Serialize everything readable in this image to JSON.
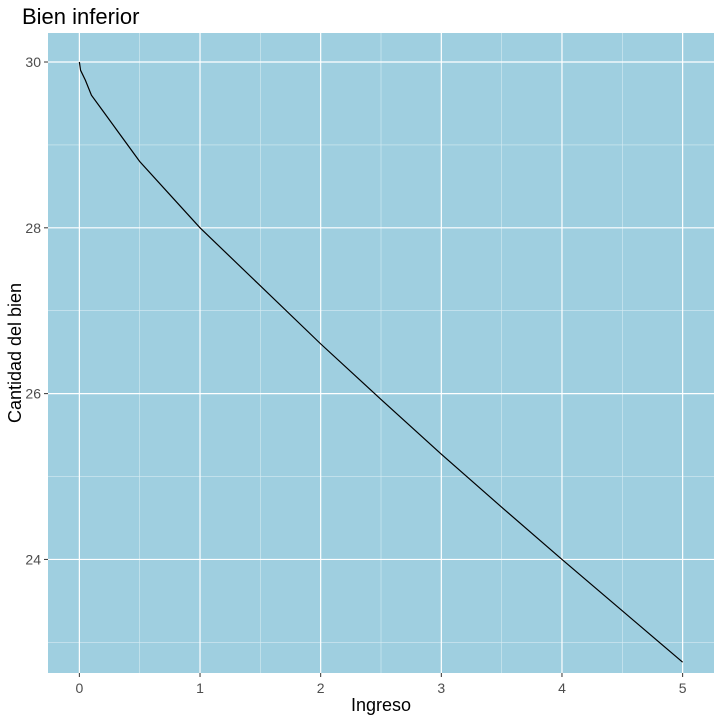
{
  "chart_data": {
    "type": "line",
    "title": "Bien inferior",
    "xlabel": "Ingreso",
    "ylabel": "Cantidad del bien",
    "xlim": [
      -0.26,
      5.26
    ],
    "ylim": [
      22.63,
      30.35
    ],
    "x_ticks": [
      0,
      1,
      2,
      3,
      4,
      5
    ],
    "y_ticks": [
      24,
      26,
      28,
      30
    ],
    "grid": true,
    "legend": "none",
    "colors": {
      "panel_background": "#9fcfe0",
      "grid_major": "#ffffff",
      "grid_minor": "#d6ebf2",
      "line": "#000000",
      "tick_mark": "#333333"
    },
    "series": [
      {
        "x": [
          0,
          0.01,
          0.05,
          0.1,
          0.2,
          0.3,
          0.5,
          0.75,
          1,
          1.5,
          2,
          2.5,
          3,
          3.5,
          4,
          4.5,
          5
        ],
        "y": [
          30,
          29.9,
          29.78,
          29.6,
          29.4,
          29.2,
          28.8,
          28.4,
          28,
          27.3,
          26.6,
          25.93,
          25.27,
          24.63,
          24.0,
          23.38,
          22.76
        ]
      }
    ]
  }
}
